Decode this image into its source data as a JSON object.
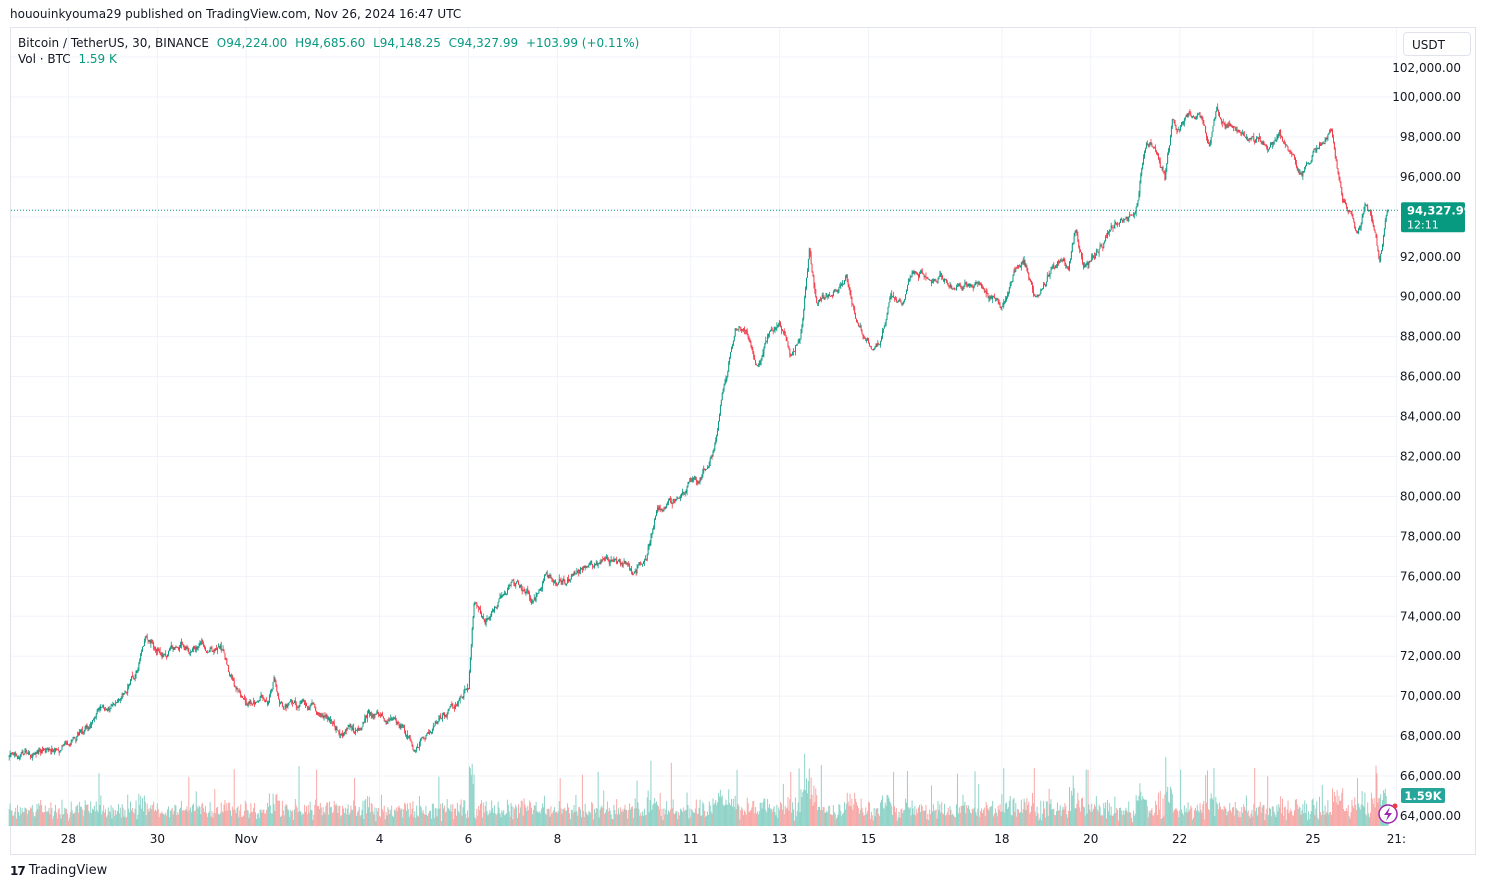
{
  "publisher_line": "hououinkyouma29 published on TradingView.com, Nov 26, 2024 16:47 UTC",
  "legend": {
    "symbol": "Bitcoin / TetherUS, 30, BINANCE",
    "open": "O94,224.00",
    "high": "H94,685.60",
    "low": "L94,148.25",
    "close": "C94,327.99",
    "change": "+103.99 (+0.11%)",
    "vol_label": "Vol · BTC",
    "vol_value": "1.59 K"
  },
  "currency_button": "USDT",
  "footer_brand": "TradingView",
  "colors": {
    "up": "#089981",
    "down": "#f23645",
    "vol_up": "#8fd3c8",
    "vol_down": "#f7a9a7",
    "grid": "#f0f3fa",
    "last_price": "#089981"
  },
  "chart_data": {
    "type": "candlestick",
    "interval": "30",
    "ylim": [
      63000,
      102000
    ],
    "y_ticks": [
      "64,000.00",
      "66,000.00",
      "68,000.00",
      "70,000.00",
      "72,000.00",
      "74,000.00",
      "76,000.00",
      "78,000.00",
      "80,000.00",
      "82,000.00",
      "84,000.00",
      "86,000.00",
      "88,000.00",
      "90,000.00",
      "92,000.00",
      "94,000.00",
      "96,000.00",
      "98,000.00",
      "100,000.00",
      "102,000.00"
    ],
    "x_ticks": [
      {
        "label": "28",
        "time": "Oct 28 00:00"
      },
      {
        "label": "30",
        "time": "Oct 30 00:00"
      },
      {
        "label": "Nov",
        "time": "Nov 1 00:00"
      },
      {
        "label": "4",
        "time": "Nov 4 00:00"
      },
      {
        "label": "6",
        "time": "Nov 6 00:00"
      },
      {
        "label": "8",
        "time": "Nov 8 00:00"
      },
      {
        "label": "11",
        "time": "Nov 11 00:00"
      },
      {
        "label": "13",
        "time": "Nov 13 00:00"
      },
      {
        "label": "15",
        "time": "Nov 15 00:00"
      },
      {
        "label": "18",
        "time": "Nov 18 00:00"
      },
      {
        "label": "20",
        "time": "Nov 20 00:00"
      },
      {
        "label": "22",
        "time": "Nov 22 00:00"
      },
      {
        "label": "25",
        "time": "Nov 25 00:00"
      },
      {
        "label": "21:",
        "time": "Nov 26 21:00"
      }
    ],
    "close_path": [
      [
        "Oct 26 16:00",
        66950
      ],
      [
        "Oct 27 12:00",
        67300
      ],
      [
        "Oct 28 00:00",
        67800
      ],
      [
        "Oct 28 12:00",
        68700
      ],
      [
        "Oct 29 00:00",
        69700
      ],
      [
        "Oct 29 12:00",
        71200
      ],
      [
        "Oct 29 18:00",
        73000
      ],
      [
        "Oct 30 00:00",
        72500
      ],
      [
        "Oct 30 12:00",
        72300
      ],
      [
        "Oct 31 00:00",
        72600
      ],
      [
        "Oct 31 12:00",
        72300
      ],
      [
        "Oct 31 18:00",
        70300
      ],
      [
        "Nov 1 00:00",
        69500
      ],
      [
        "Nov 1 12:00",
        69800
      ],
      [
        "Nov 1 15:00",
        71000
      ],
      [
        "Nov 1 18:00",
        69300
      ],
      [
        "Nov 2 00:00",
        69600
      ],
      [
        "Nov 2 12:00",
        69500
      ],
      [
        "Nov 3 00:00",
        68400
      ],
      [
        "Nov 3 12:00",
        68100
      ],
      [
        "Nov 3 18:00",
        69000
      ],
      [
        "Nov 4 00:00",
        68800
      ],
      [
        "Nov 4 12:00",
        68700
      ],
      [
        "Nov 4 18:00",
        67600
      ],
      [
        "Nov 5 00:00",
        68200
      ],
      [
        "Nov 5 12:00",
        69000
      ],
      [
        "Nov 5 18:00",
        69600
      ],
      [
        "Nov 6 00:00",
        70400
      ],
      [
        "Nov 6 03:00",
        74600
      ],
      [
        "Nov 6 09:00",
        73500
      ],
      [
        "Nov 6 18:00",
        75200
      ],
      [
        "Nov 7 00:00",
        75800
      ],
      [
        "Nov 7 12:00",
        74900
      ],
      [
        "Nov 7 18:00",
        76400
      ],
      [
        "Nov 8 00:00",
        75900
      ],
      [
        "Nov 8 12:00",
        76200
      ],
      [
        "Nov 8 18:00",
        76800
      ],
      [
        "Nov 9 00:00",
        76600
      ],
      [
        "Nov 9 12:00",
        76500
      ],
      [
        "Nov 9 18:00",
        76200
      ],
      [
        "Nov 10 00:00",
        77000
      ],
      [
        "Nov 10 06:00",
        79400
      ],
      [
        "Nov 10 12:00",
        79800
      ],
      [
        "Nov 10 18:00",
        80300
      ],
      [
        "Nov 11 00:00",
        81000
      ],
      [
        "Nov 11 06:00",
        81000
      ],
      [
        "Nov 11 12:00",
        82200
      ],
      [
        "Nov 11 18:00",
        85500
      ],
      [
        "Nov 12 00:00",
        88600
      ],
      [
        "Nov 12 06:00",
        88200
      ],
      [
        "Nov 12 12:00",
        86500
      ],
      [
        "Nov 12 18:00",
        88000
      ],
      [
        "Nov 13 00:00",
        88800
      ],
      [
        "Nov 13 06:00",
        87000
      ],
      [
        "Nov 13 12:00",
        88500
      ],
      [
        "Nov 13 16:00",
        92500
      ],
      [
        "Nov 13 20:00",
        89500
      ],
      [
        "Nov 14 00:00",
        90000
      ],
      [
        "Nov 14 06:00",
        90500
      ],
      [
        "Nov 14 12:00",
        91000
      ],
      [
        "Nov 14 18:00",
        88500
      ],
      [
        "Nov 15 00:00",
        87800
      ],
      [
        "Nov 15 06:00",
        87600
      ],
      [
        "Nov 15 12:00",
        90000
      ],
      [
        "Nov 15 18:00",
        89800
      ],
      [
        "Nov 16 00:00",
        91300
      ],
      [
        "Nov 16 12:00",
        91000
      ],
      [
        "Nov 17 00:00",
        90500
      ],
      [
        "Nov 17 12:00",
        90700
      ],
      [
        "Nov 17 18:00",
        90000
      ],
      [
        "Nov 18 00:00",
        89800
      ],
      [
        "Nov 18 06:00",
        91200
      ],
      [
        "Nov 18 12:00",
        91800
      ],
      [
        "Nov 18 18:00",
        90000
      ],
      [
        "Nov 19 00:00",
        91000
      ],
      [
        "Nov 19 06:00",
        91800
      ],
      [
        "Nov 19 12:00",
        91500
      ],
      [
        "Nov 19 16:00",
        93400
      ],
      [
        "Nov 19 20:00",
        91700
      ],
      [
        "Nov 20 00:00",
        91800
      ],
      [
        "Nov 20 12:00",
        93600
      ],
      [
        "Nov 20 18:00",
        94200
      ],
      [
        "Nov 21 00:00",
        94000
      ],
      [
        "Nov 21 06:00",
        97800
      ],
      [
        "Nov 21 12:00",
        97500
      ],
      [
        "Nov 21 16:00",
        96000
      ],
      [
        "Nov 21 20:00",
        98500
      ],
      [
        "Nov 22 00:00",
        98200
      ],
      [
        "Nov 22 06:00",
        99100
      ],
      [
        "Nov 22 12:00",
        98800
      ],
      [
        "Nov 22 16:00",
        97500
      ],
      [
        "Nov 22 20:00",
        99300
      ],
      [
        "Nov 23 00:00",
        98500
      ],
      [
        "Nov 23 12:00",
        98300
      ],
      [
        "Nov 24 00:00",
        97500
      ],
      [
        "Nov 24 06:00",
        98000
      ],
      [
        "Nov 24 12:00",
        97000
      ],
      [
        "Nov 24 18:00",
        95800
      ],
      [
        "Nov 25 00:00",
        97200
      ],
      [
        "Nov 25 06:00",
        97800
      ],
      [
        "Nov 25 10:00",
        98500
      ],
      [
        "Nov 25 16:00",
        95000
      ],
      [
        "Nov 25 20:00",
        94500
      ],
      [
        "Nov 26 00:00",
        93000
      ],
      [
        "Nov 26 04:00",
        94600
      ],
      [
        "Nov 26 08:00",
        93800
      ],
      [
        "Nov 26 12:00",
        91800
      ],
      [
        "Nov 26 16:30",
        94327.99
      ]
    ],
    "last_price": {
      "value": 94327.99,
      "label": "94,327.99",
      "countdown": "12:11"
    },
    "last_volume_label": "1.59K"
  }
}
